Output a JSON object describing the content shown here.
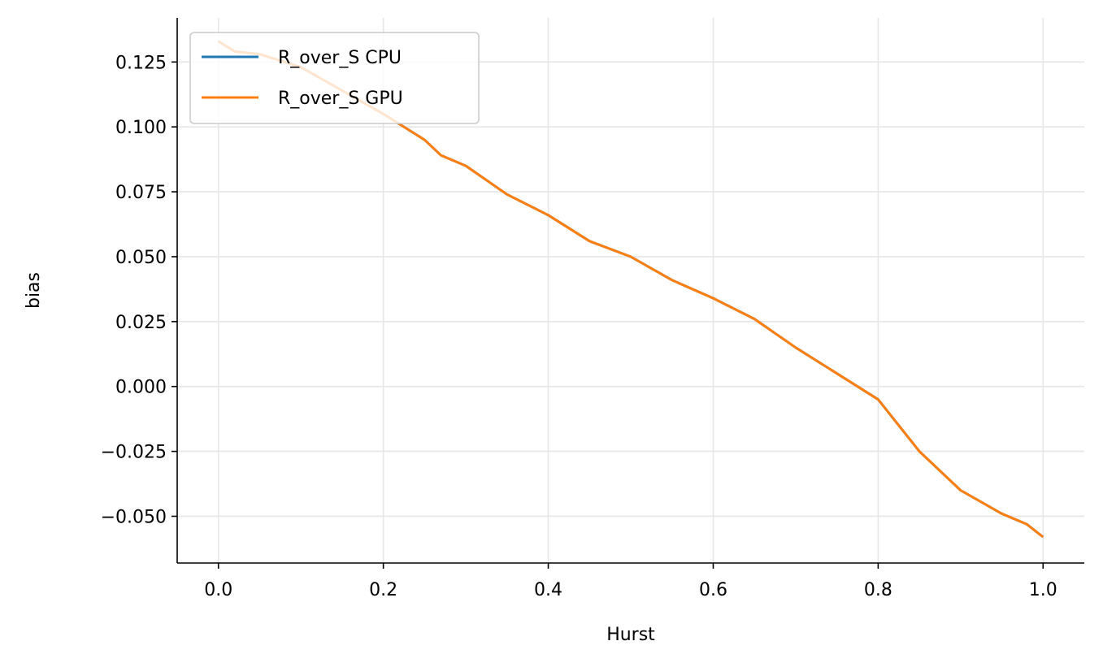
{
  "chart_data": {
    "type": "line",
    "title": "",
    "xlabel": "Hurst",
    "ylabel": "bias",
    "xlim": [
      -0.05,
      1.05
    ],
    "ylim": [
      -0.068,
      0.142
    ],
    "xticks": [
      0.0,
      0.2,
      0.4,
      0.6,
      0.8,
      1.0
    ],
    "xtick_labels": [
      "0.0",
      "0.2",
      "0.4",
      "0.6",
      "0.8",
      "1.0"
    ],
    "yticks": [
      -0.05,
      -0.025,
      0.0,
      0.025,
      0.05,
      0.075,
      0.1,
      0.125
    ],
    "ytick_labels": [
      "−0.050",
      "−0.025",
      "0.000",
      "0.025",
      "0.050",
      "0.075",
      "0.100",
      "0.125"
    ],
    "grid": true,
    "legend_position": "top-left",
    "series": [
      {
        "name": "R_over_S CPU",
        "color": "#1f77b4",
        "x": [
          0.0,
          0.02,
          0.05,
          0.1,
          0.15,
          0.2,
          0.25,
          0.27,
          0.3,
          0.35,
          0.4,
          0.45,
          0.5,
          0.55,
          0.6,
          0.65,
          0.7,
          0.75,
          0.8,
          0.85,
          0.9,
          0.95,
          0.98,
          1.0
        ],
        "y": [
          0.133,
          0.129,
          0.128,
          0.123,
          0.114,
          0.105,
          0.095,
          0.089,
          0.085,
          0.074,
          0.066,
          0.056,
          0.05,
          0.041,
          0.034,
          0.026,
          0.015,
          0.005,
          -0.005,
          -0.025,
          -0.04,
          -0.049,
          -0.053,
          -0.058
        ]
      },
      {
        "name": "R_over_S GPU",
        "color": "#ff7f0e",
        "x": [
          0.0,
          0.02,
          0.05,
          0.1,
          0.15,
          0.2,
          0.25,
          0.27,
          0.3,
          0.35,
          0.4,
          0.45,
          0.5,
          0.55,
          0.6,
          0.65,
          0.7,
          0.75,
          0.8,
          0.85,
          0.9,
          0.95,
          0.98,
          1.0
        ],
        "y": [
          0.133,
          0.129,
          0.128,
          0.123,
          0.114,
          0.105,
          0.095,
          0.089,
          0.085,
          0.074,
          0.066,
          0.056,
          0.05,
          0.041,
          0.034,
          0.026,
          0.015,
          0.005,
          -0.005,
          -0.025,
          -0.04,
          -0.049,
          -0.053,
          -0.058
        ]
      }
    ]
  }
}
